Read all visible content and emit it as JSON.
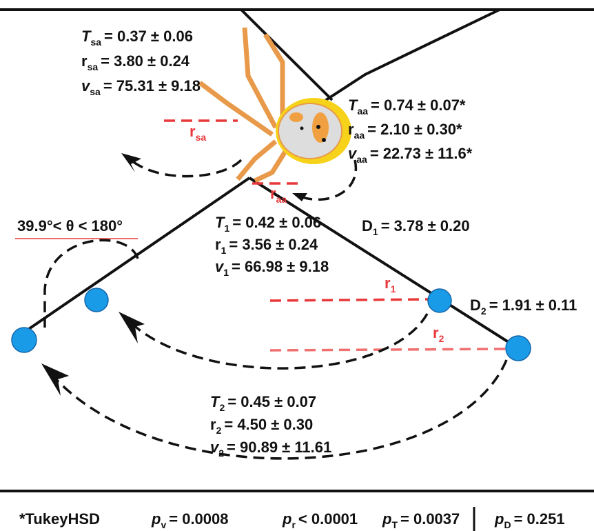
{
  "blocks": [
    {
      "lines": [
        {
          "symbol": "T",
          "sub": "sa",
          "value": "= 0.37 ± 0.06"
        },
        {
          "symbol": "r",
          "sub": "sa",
          "value": "= 3.80 ± 0.24"
        },
        {
          "symbol": "v",
          "sub": "sa",
          "value": "= 75.31 ± 9.18"
        }
      ]
    },
    {
      "lines": [
        {
          "symbol": "T",
          "sub": "aa",
          "value": "= 0.74 ± 0.07*"
        },
        {
          "symbol": "r",
          "sub": "aa",
          "value": "= 2.10 ± 0.30*"
        },
        {
          "symbol": "v",
          "sub": "aa",
          "value": "= 22.73 ± 11.6*"
        }
      ]
    },
    {
      "lines": [
        {
          "symbol": "T",
          "sub": "1",
          "value": "= 0.42 ± 0.06"
        },
        {
          "symbol": "r",
          "sub": "1",
          "value": "= 3.56 ± 0.24"
        },
        {
          "symbol": "v",
          "sub": "1",
          "value": "= 66.98 ± 9.18"
        }
      ]
    },
    {
      "lines": [
        {
          "symbol": "T",
          "sub": "2",
          "value": "= 0.45 ± 0.07"
        },
        {
          "symbol": "r",
          "sub": "2",
          "value": "= 4.50 ± 0.30"
        },
        {
          "symbol": "v",
          "sub": "2",
          "value": "= 90.89 ± 11.61"
        }
      ]
    }
  ],
  "distances": [
    {
      "symbol": "D",
      "sub": "1",
      "value": "= 3.78 ±  0.20"
    },
    {
      "symbol": "D",
      "sub": "2",
      "value": "= 1.91 ±  0.11"
    }
  ],
  "radii": [
    {
      "symbol": "r",
      "sub": "sa"
    },
    {
      "symbol": "r",
      "sub": "aa"
    },
    {
      "symbol": "r",
      "sub": "1"
    },
    {
      "symbol": "r",
      "sub": "2"
    }
  ],
  "angle": "39.9°< θ < 180°",
  "footer": {
    "note": "*TukeyHSD",
    "tests": [
      {
        "symbol": "p",
        "sub": "v",
        "value": "= 0.0008"
      },
      {
        "symbol": "p",
        "sub": "r",
        "value": "< 0.0001"
      },
      {
        "symbol": "p",
        "sub": "T",
        "value": "= 0.0037"
      },
      {
        "symbol": "p",
        "sub": "D",
        "value": "= 0.251"
      }
    ]
  }
}
